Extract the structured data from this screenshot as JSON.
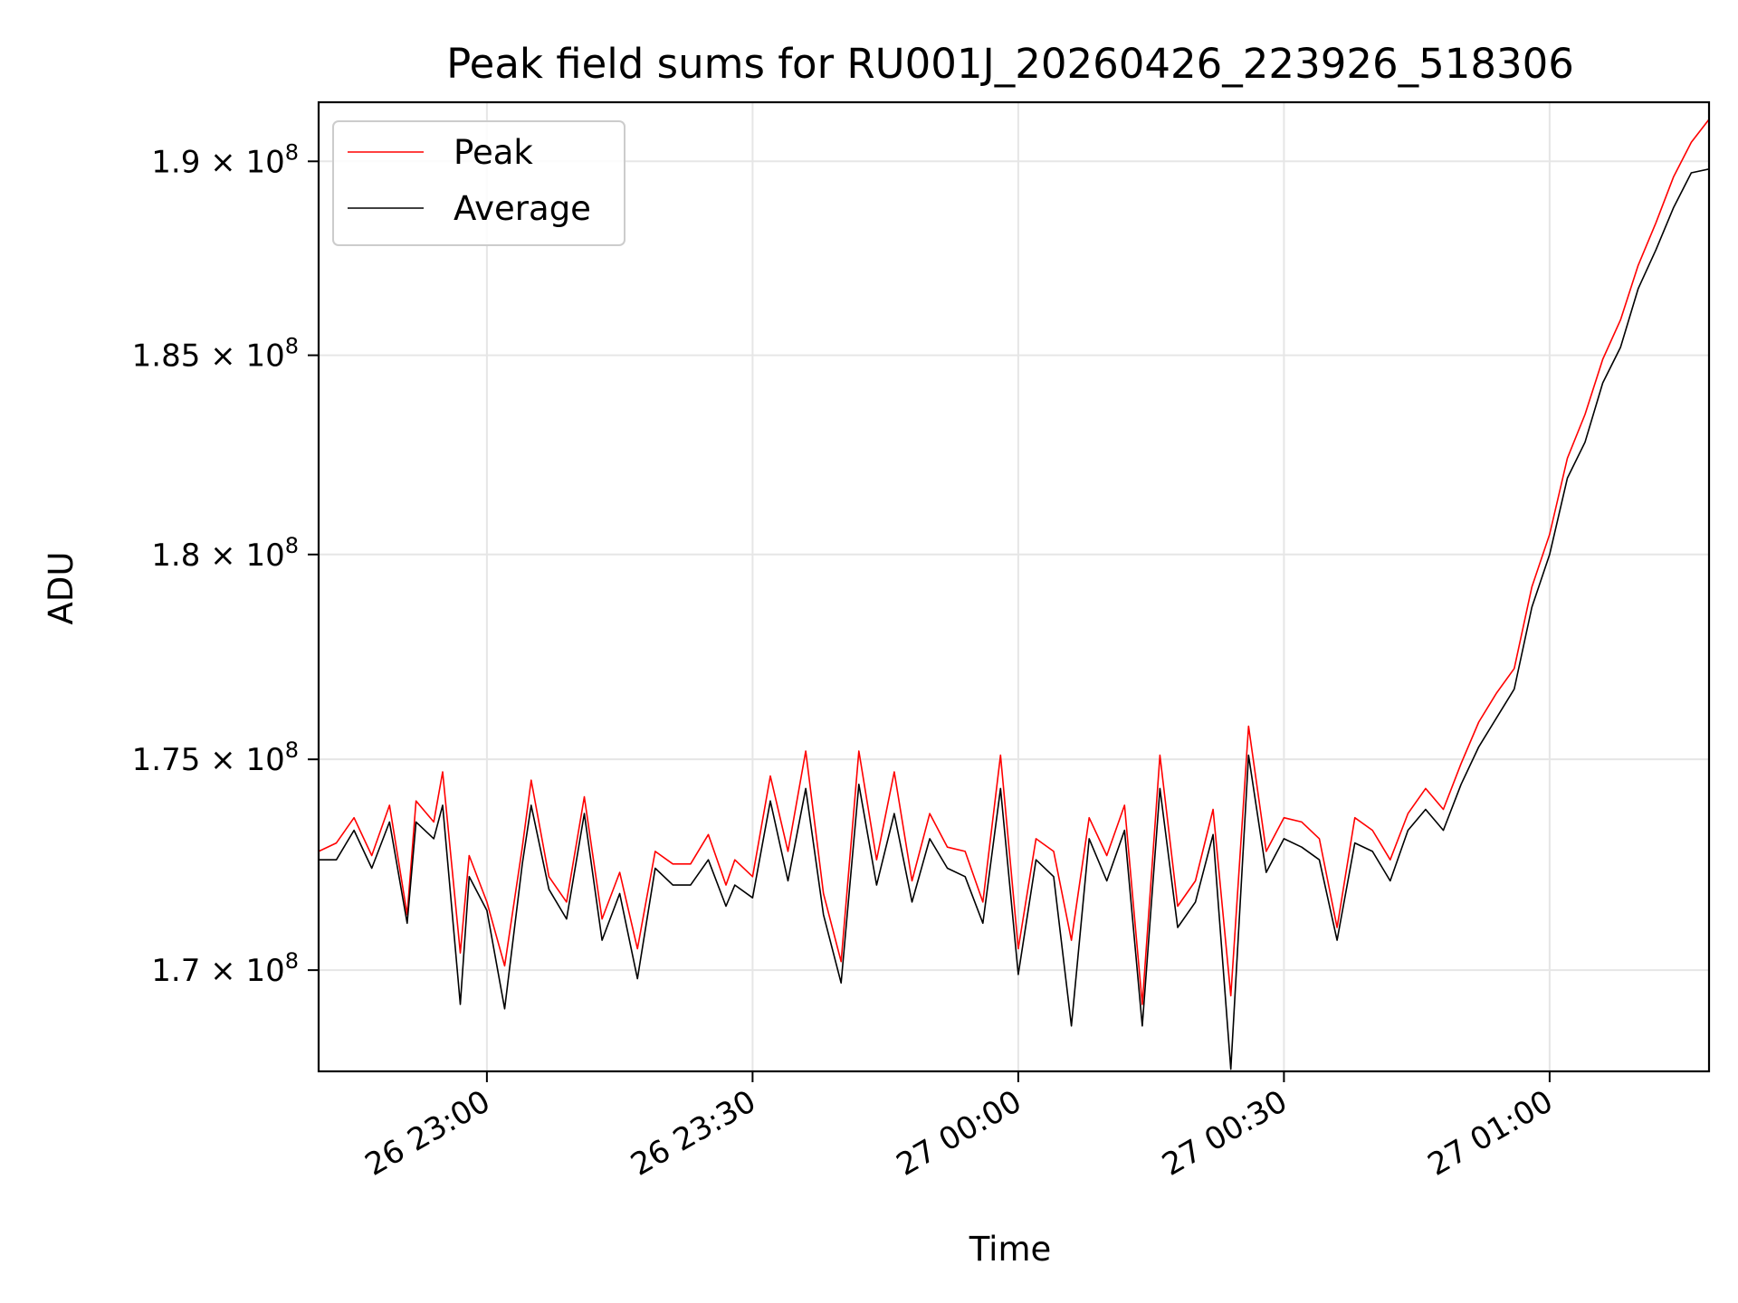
{
  "chart_data": {
    "type": "line",
    "title": "Peak field sums for RU001J_20260426_223926_518306",
    "xlabel": "Time",
    "ylabel": "ADU",
    "x_range": [
      "2026-04-26T22:41:00",
      "2026-04-27T01:18:00"
    ],
    "xlim": [
      "2026-04-26 22:41",
      "2026-04-27 01:18"
    ],
    "ylim": [
      167650000,
      191550000
    ],
    "y_scale": "log",
    "grid": true,
    "legend_position": "top-left",
    "x_ticks": [
      {
        "value": "2026-04-26 23:00",
        "label": "26 23:00"
      },
      {
        "value": "2026-04-26 23:30",
        "label": "26 23:30"
      },
      {
        "value": "2026-04-27 00:00",
        "label": "27 00:00"
      },
      {
        "value": "2026-04-27 00:30",
        "label": "27 00:30"
      },
      {
        "value": "2026-04-27 01:00",
        "label": "27 01:00"
      }
    ],
    "y_ticks": [
      {
        "value": 170000000,
        "mantissa": "1.7",
        "exponent": "8"
      },
      {
        "value": 175000000,
        "mantissa": "1.75",
        "exponent": "8"
      },
      {
        "value": 180000000,
        "mantissa": "1.8",
        "exponent": "8"
      },
      {
        "value": 185000000,
        "mantissa": "1.85",
        "exponent": "8"
      },
      {
        "value": 190000000,
        "mantissa": "1.9",
        "exponent": "8"
      }
    ],
    "series": [
      {
        "name": "Peak",
        "color": "#ff0000",
        "points": [
          [
            "2026-04-26 22:41",
            172800000
          ],
          [
            "2026-04-26 22:43",
            173000000
          ],
          [
            "2026-04-26 22:45",
            173600000
          ],
          [
            "2026-04-26 22:47",
            172700000
          ],
          [
            "2026-04-26 22:49",
            173900000
          ],
          [
            "2026-04-26 22:51",
            171300000
          ],
          [
            "2026-04-26 22:52",
            174000000
          ],
          [
            "2026-04-26 22:54",
            173500000
          ],
          [
            "2026-04-26 22:55",
            174700000
          ],
          [
            "2026-04-26 22:57",
            170400000
          ],
          [
            "2026-04-26 22:58",
            172700000
          ],
          [
            "2026-04-26 23:00",
            171600000
          ],
          [
            "2026-04-26 23:02",
            170100000
          ],
          [
            "2026-04-26 23:04",
            172900000
          ],
          [
            "2026-04-26 23:05",
            174500000
          ],
          [
            "2026-04-26 23:07",
            172200000
          ],
          [
            "2026-04-26 23:09",
            171600000
          ],
          [
            "2026-04-26 23:11",
            174100000
          ],
          [
            "2026-04-26 23:13",
            171200000
          ],
          [
            "2026-04-26 23:15",
            172300000
          ],
          [
            "2026-04-26 23:17",
            170500000
          ],
          [
            "2026-04-26 23:19",
            172800000
          ],
          [
            "2026-04-26 23:21",
            172500000
          ],
          [
            "2026-04-26 23:23",
            172500000
          ],
          [
            "2026-04-26 23:25",
            173200000
          ],
          [
            "2026-04-26 23:27",
            172000000
          ],
          [
            "2026-04-26 23:28",
            172600000
          ],
          [
            "2026-04-26 23:30",
            172200000
          ],
          [
            "2026-04-26 23:32",
            174600000
          ],
          [
            "2026-04-26 23:34",
            172800000
          ],
          [
            "2026-04-26 23:36",
            175200000
          ],
          [
            "2026-04-26 23:38",
            171800000
          ],
          [
            "2026-04-26 23:40",
            170200000
          ],
          [
            "2026-04-26 23:42",
            175200000
          ],
          [
            "2026-04-26 23:44",
            172600000
          ],
          [
            "2026-04-26 23:46",
            174700000
          ],
          [
            "2026-04-26 23:48",
            172100000
          ],
          [
            "2026-04-26 23:50",
            173700000
          ],
          [
            "2026-04-26 23:52",
            172900000
          ],
          [
            "2026-04-26 23:54",
            172800000
          ],
          [
            "2026-04-26 23:56",
            171600000
          ],
          [
            "2026-04-26 23:58",
            175100000
          ],
          [
            "2026-04-27 00:00",
            170500000
          ],
          [
            "2026-04-27 00:02",
            173100000
          ],
          [
            "2026-04-27 00:04",
            172800000
          ],
          [
            "2026-04-27 00:06",
            170700000
          ],
          [
            "2026-04-27 00:08",
            173600000
          ],
          [
            "2026-04-27 00:10",
            172700000
          ],
          [
            "2026-04-27 00:12",
            173900000
          ],
          [
            "2026-04-27 00:14",
            169200000
          ],
          [
            "2026-04-27 00:16",
            175100000
          ],
          [
            "2026-04-27 00:18",
            171500000
          ],
          [
            "2026-04-27 00:20",
            172100000
          ],
          [
            "2026-04-27 00:22",
            173800000
          ],
          [
            "2026-04-27 00:24",
            169400000
          ],
          [
            "2026-04-27 00:26",
            175800000
          ],
          [
            "2026-04-27 00:28",
            172800000
          ],
          [
            "2026-04-27 00:30",
            173600000
          ],
          [
            "2026-04-27 00:32",
            173500000
          ],
          [
            "2026-04-27 00:34",
            173100000
          ],
          [
            "2026-04-27 00:36",
            171000000
          ],
          [
            "2026-04-27 00:38",
            173600000
          ],
          [
            "2026-04-27 00:40",
            173300000
          ],
          [
            "2026-04-27 00:42",
            172600000
          ],
          [
            "2026-04-27 00:44",
            173700000
          ],
          [
            "2026-04-27 00:46",
            174300000
          ],
          [
            "2026-04-27 00:48",
            173800000
          ],
          [
            "2026-04-27 00:50",
            174900000
          ],
          [
            "2026-04-27 00:52",
            175900000
          ],
          [
            "2026-04-27 00:54",
            176600000
          ],
          [
            "2026-04-27 00:56",
            177200000
          ],
          [
            "2026-04-27 00:58",
            179200000
          ],
          [
            "2026-04-27 01:00",
            180500000
          ],
          [
            "2026-04-27 01:02",
            182400000
          ],
          [
            "2026-04-27 01:04",
            183500000
          ],
          [
            "2026-04-27 01:06",
            184900000
          ],
          [
            "2026-04-27 01:08",
            185900000
          ],
          [
            "2026-04-27 01:10",
            187300000
          ],
          [
            "2026-04-27 01:12",
            188400000
          ],
          [
            "2026-04-27 01:14",
            189600000
          ],
          [
            "2026-04-27 01:16",
            190500000
          ],
          [
            "2026-04-27 01:18",
            191100000
          ]
        ]
      },
      {
        "name": "Average",
        "color": "#000000",
        "points": [
          [
            "2026-04-26 22:41",
            172600000
          ],
          [
            "2026-04-26 22:43",
            172600000
          ],
          [
            "2026-04-26 22:45",
            173300000
          ],
          [
            "2026-04-26 22:47",
            172400000
          ],
          [
            "2026-04-26 22:49",
            173500000
          ],
          [
            "2026-04-26 22:51",
            171100000
          ],
          [
            "2026-04-26 22:52",
            173500000
          ],
          [
            "2026-04-26 22:54",
            173100000
          ],
          [
            "2026-04-26 22:55",
            173900000
          ],
          [
            "2026-04-26 22:57",
            169200000
          ],
          [
            "2026-04-26 22:58",
            172200000
          ],
          [
            "2026-04-26 23:00",
            171400000
          ],
          [
            "2026-04-26 23:02",
            169100000
          ],
          [
            "2026-04-26 23:04",
            172500000
          ],
          [
            "2026-04-26 23:05",
            173900000
          ],
          [
            "2026-04-26 23:07",
            171900000
          ],
          [
            "2026-04-26 23:09",
            171200000
          ],
          [
            "2026-04-26 23:11",
            173700000
          ],
          [
            "2026-04-26 23:13",
            170700000
          ],
          [
            "2026-04-26 23:15",
            171800000
          ],
          [
            "2026-04-26 23:17",
            169800000
          ],
          [
            "2026-04-26 23:19",
            172400000
          ],
          [
            "2026-04-26 23:21",
            172000000
          ],
          [
            "2026-04-26 23:23",
            172000000
          ],
          [
            "2026-04-26 23:25",
            172600000
          ],
          [
            "2026-04-26 23:27",
            171500000
          ],
          [
            "2026-04-26 23:28",
            172000000
          ],
          [
            "2026-04-26 23:30",
            171700000
          ],
          [
            "2026-04-26 23:32",
            174000000
          ],
          [
            "2026-04-26 23:34",
            172100000
          ],
          [
            "2026-04-26 23:36",
            174300000
          ],
          [
            "2026-04-26 23:38",
            171300000
          ],
          [
            "2026-04-26 23:40",
            169700000
          ],
          [
            "2026-04-26 23:42",
            174400000
          ],
          [
            "2026-04-26 23:44",
            172000000
          ],
          [
            "2026-04-26 23:46",
            173700000
          ],
          [
            "2026-04-26 23:48",
            171600000
          ],
          [
            "2026-04-26 23:50",
            173100000
          ],
          [
            "2026-04-26 23:52",
            172400000
          ],
          [
            "2026-04-26 23:54",
            172200000
          ],
          [
            "2026-04-26 23:56",
            171100000
          ],
          [
            "2026-04-26 23:58",
            174300000
          ],
          [
            "2026-04-27 00:00",
            169900000
          ],
          [
            "2026-04-27 00:02",
            172600000
          ],
          [
            "2026-04-27 00:04",
            172200000
          ],
          [
            "2026-04-27 00:06",
            168700000
          ],
          [
            "2026-04-27 00:08",
            173100000
          ],
          [
            "2026-04-27 00:10",
            172100000
          ],
          [
            "2026-04-27 00:12",
            173300000
          ],
          [
            "2026-04-27 00:14",
            168700000
          ],
          [
            "2026-04-27 00:16",
            174300000
          ],
          [
            "2026-04-27 00:18",
            171000000
          ],
          [
            "2026-04-27 00:20",
            171600000
          ],
          [
            "2026-04-27 00:22",
            173200000
          ],
          [
            "2026-04-27 00:24",
            167700000
          ],
          [
            "2026-04-27 00:26",
            175100000
          ],
          [
            "2026-04-27 00:28",
            172300000
          ],
          [
            "2026-04-27 00:30",
            173100000
          ],
          [
            "2026-04-27 00:32",
            172900000
          ],
          [
            "2026-04-27 00:34",
            172600000
          ],
          [
            "2026-04-27 00:36",
            170700000
          ],
          [
            "2026-04-27 00:38",
            173000000
          ],
          [
            "2026-04-27 00:40",
            172800000
          ],
          [
            "2026-04-27 00:42",
            172100000
          ],
          [
            "2026-04-27 00:44",
            173300000
          ],
          [
            "2026-04-27 00:46",
            173800000
          ],
          [
            "2026-04-27 00:48",
            173300000
          ],
          [
            "2026-04-27 00:50",
            174400000
          ],
          [
            "2026-04-27 00:52",
            175300000
          ],
          [
            "2026-04-27 00:54",
            176000000
          ],
          [
            "2026-04-27 00:56",
            176700000
          ],
          [
            "2026-04-27 00:58",
            178700000
          ],
          [
            "2026-04-27 01:00",
            180000000
          ],
          [
            "2026-04-27 01:02",
            181900000
          ],
          [
            "2026-04-27 01:04",
            182800000
          ],
          [
            "2026-04-27 01:06",
            184300000
          ],
          [
            "2026-04-27 01:08",
            185200000
          ],
          [
            "2026-04-27 01:10",
            186700000
          ],
          [
            "2026-04-27 01:12",
            187700000
          ],
          [
            "2026-04-27 01:14",
            188800000
          ],
          [
            "2026-04-27 01:16",
            189700000
          ],
          [
            "2026-04-27 01:18",
            189800000
          ]
        ]
      }
    ]
  }
}
